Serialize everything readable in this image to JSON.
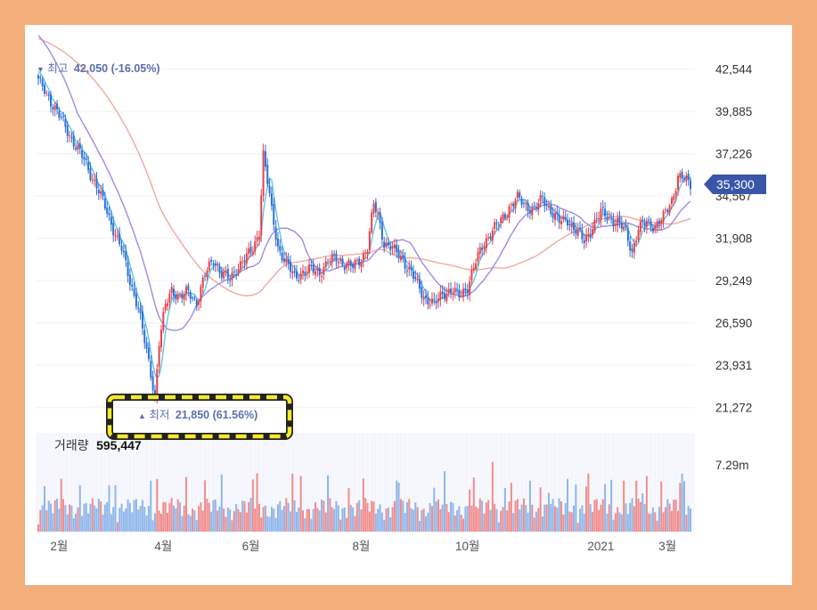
{
  "chart_data": {
    "type": "candlestick",
    "title": "",
    "price_axis": {
      "ticks": [
        "42,544",
        "39,885",
        "37,226",
        "34,567",
        "31,908",
        "29,249",
        "26,590",
        "23,931",
        "21,272"
      ],
      "tick_values": [
        42544,
        39885,
        37226,
        34567,
        31908,
        29249,
        26590,
        23931,
        21272
      ],
      "range": [
        19800,
        44200
      ]
    },
    "time_axis": {
      "ticks": [
        "2월",
        "4월",
        "6월",
        "8월",
        "10월",
        "2021",
        "3월"
      ]
    },
    "current_price": {
      "label": "35,300",
      "value": 35300
    },
    "annotations": {
      "high": {
        "marker": "▼",
        "label": "최고",
        "value": "42,050 (-16.05%)",
        "price": 42050
      },
      "low": {
        "marker": "▲",
        "label": "최저",
        "value": "21,850 (61.56%)",
        "price": 21850
      }
    },
    "volume": {
      "label": "거래량",
      "value": "595,447",
      "axis_max_label": "7.29m"
    },
    "keypoints": [
      [
        0,
        41800
      ],
      [
        5,
        40800
      ],
      [
        10,
        39600
      ],
      [
        16,
        38200
      ],
      [
        22,
        36800
      ],
      [
        28,
        35200
      ],
      [
        34,
        33200
      ],
      [
        40,
        31200
      ],
      [
        44,
        29200
      ],
      [
        48,
        27600
      ],
      [
        51,
        25400
      ],
      [
        54,
        23400
      ],
      [
        56,
        22000
      ],
      [
        58,
        25400
      ],
      [
        61,
        27600
      ],
      [
        64,
        28700
      ],
      [
        68,
        28200
      ],
      [
        72,
        28500
      ],
      [
        76,
        27900
      ],
      [
        80,
        29600
      ],
      [
        84,
        30600
      ],
      [
        88,
        29700
      ],
      [
        92,
        29300
      ],
      [
        96,
        30200
      ],
      [
        100,
        30700
      ],
      [
        103,
        31200
      ],
      [
        106,
        32400
      ],
      [
        108,
        37200
      ],
      [
        110,
        35400
      ],
      [
        112,
        33600
      ],
      [
        115,
        31400
      ],
      [
        119,
        30300
      ],
      [
        123,
        29500
      ],
      [
        127,
        29800
      ],
      [
        131,
        29900
      ],
      [
        135,
        29800
      ],
      [
        139,
        30400
      ],
      [
        143,
        30700
      ],
      [
        147,
        30300
      ],
      [
        151,
        30100
      ],
      [
        155,
        30700
      ],
      [
        158,
        31300
      ],
      [
        161,
        34000
      ],
      [
        163,
        33400
      ],
      [
        166,
        31600
      ],
      [
        170,
        31200
      ],
      [
        174,
        30800
      ],
      [
        178,
        29900
      ],
      [
        182,
        29000
      ],
      [
        186,
        28100
      ],
      [
        190,
        27700
      ],
      [
        194,
        28500
      ],
      [
        198,
        28600
      ],
      [
        202,
        28300
      ],
      [
        206,
        28900
      ],
      [
        210,
        30400
      ],
      [
        214,
        31700
      ],
      [
        218,
        32400
      ],
      [
        222,
        33000
      ],
      [
        226,
        33900
      ],
      [
        230,
        34400
      ],
      [
        234,
        34000
      ],
      [
        238,
        33700
      ],
      [
        242,
        34400
      ],
      [
        246,
        33700
      ],
      [
        250,
        32900
      ],
      [
        254,
        33100
      ],
      [
        258,
        32400
      ],
      [
        262,
        31700
      ],
      [
        266,
        32700
      ],
      [
        270,
        33500
      ],
      [
        274,
        33200
      ],
      [
        278,
        32900
      ],
      [
        282,
        32300
      ],
      [
        285,
        31100
      ],
      [
        288,
        32500
      ],
      [
        292,
        32900
      ],
      [
        296,
        32700
      ],
      [
        300,
        33200
      ],
      [
        304,
        34300
      ],
      [
        307,
        35800
      ],
      [
        310,
        35600
      ],
      [
        313,
        35300
      ]
    ],
    "colors": {
      "up": "#e8414a",
      "down": "#2f6fd6",
      "ma5": "#5ec8e6",
      "ma20": "#9b8de6",
      "ma60": "#f4a7a0",
      "current_price_tag": "#3a56a8",
      "annotation_text": "#5a6fb0",
      "volume_up": "#f08c8c",
      "volume_down": "#8fb6ea"
    }
  }
}
